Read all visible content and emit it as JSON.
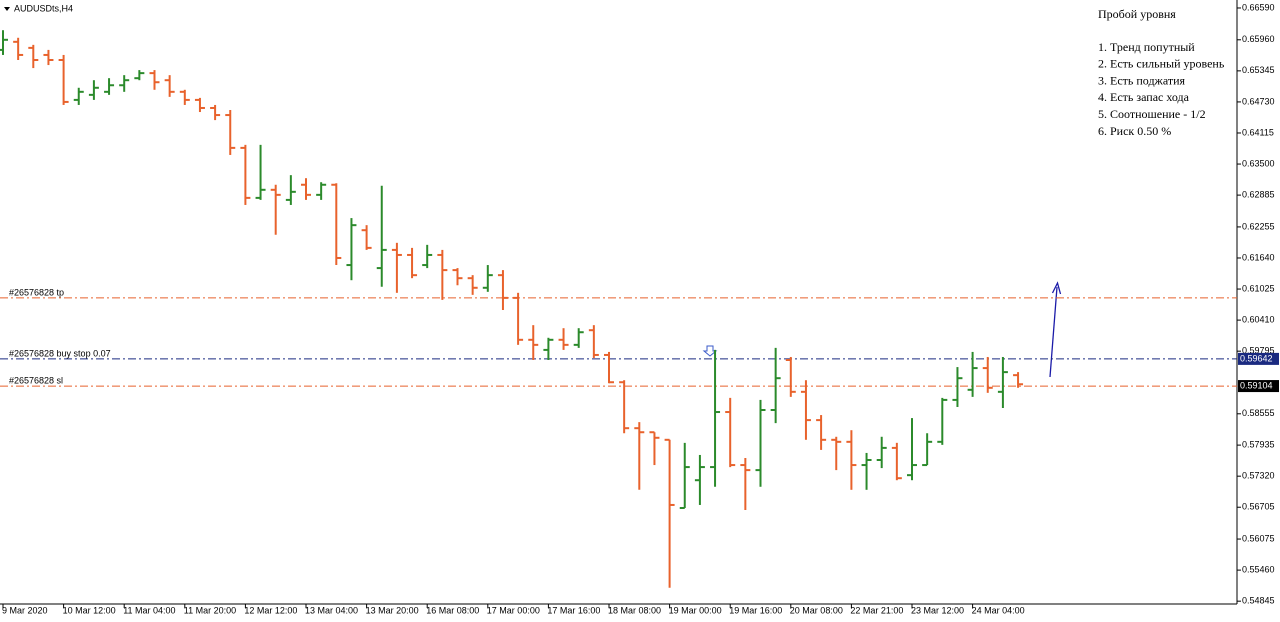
{
  "chart_data": {
    "type": "ohlc",
    "title": "AUDUSDts,H4",
    "categories": [
      "9 Mar 2020",
      null,
      null,
      null,
      "10 Mar 12:00",
      null,
      null,
      null,
      "11 Mar 04:00",
      null,
      null,
      null,
      "11 Mar 20:00",
      null,
      null,
      null,
      "12 Mar 12:00",
      null,
      null,
      null,
      "13 Mar 04:00",
      null,
      null,
      null,
      "13 Mar 20:00",
      null,
      null,
      null,
      "16 Mar 08:00",
      null,
      null,
      null,
      "17 Mar 00:00",
      null,
      null,
      null,
      "17 Mar 16:00",
      null,
      null,
      null,
      "18 Mar 08:00",
      null,
      null,
      null,
      "19 Mar 00:00",
      null,
      null,
      null,
      "19 Mar 16:00",
      null,
      null,
      null,
      "20 Mar 08:00",
      null,
      null,
      null,
      "22 Mar 21:00",
      null,
      null,
      null,
      "23 Mar 12:00",
      null,
      null,
      null,
      "24 Mar 04:00",
      null,
      null,
      null
    ],
    "open": [
      0.6576,
      0.6592,
      0.658,
      0.6566,
      0.6556,
      0.6477,
      0.6487,
      0.6493,
      0.6506,
      0.652,
      0.653,
      0.6516,
      0.6493,
      0.6477,
      0.6461,
      0.6447,
      0.6382,
      0.6283,
      0.6299,
      0.6279,
      0.6309,
      0.6289,
      0.6309,
      0.615,
      0.6219,
      0.6144,
      0.618,
      0.617,
      0.615,
      0.617,
      0.614,
      0.6124,
      0.6105,
      0.613,
      0.6085,
      0.6002,
      0.5982,
      0.6002,
      0.5992,
      0.6021,
      0.5972,
      0.5918,
      0.5827,
      0.5819,
      0.5804,
      0.5669,
      0.5724,
      0.575,
      0.5859,
      0.5754,
      0.5744,
      0.5863,
      0.5962,
      0.5899,
      0.5843,
      0.5804,
      0.58,
      0.5754,
      0.5764,
      0.5788,
      0.5734,
      0.5754,
      0.58,
      0.5883,
      0.5903,
      0.5946,
      0.5899,
      0.5932
    ],
    "high": [
      0.6615,
      0.66,
      0.6586,
      0.6576,
      0.6566,
      0.6501,
      0.6516,
      0.652,
      0.6526,
      0.6536,
      0.6536,
      0.6526,
      0.6497,
      0.6481,
      0.6467,
      0.6457,
      0.6388,
      0.6388,
      0.6309,
      0.6328,
      0.6322,
      0.6314,
      0.6312,
      0.6243,
      0.6229,
      0.6307,
      0.6194,
      0.6184,
      0.619,
      0.618,
      0.6144,
      0.613,
      0.615,
      0.614,
      0.6095,
      0.6031,
      0.6006,
      0.6025,
      0.6025,
      0.6031,
      0.5978,
      0.5922,
      0.5839,
      0.5819,
      0.5804,
      0.5798,
      0.5774,
      0.5982,
      0.5887,
      0.5768,
      0.5883,
      0.5986,
      0.5968,
      0.5922,
      0.5853,
      0.581,
      0.5823,
      0.5778,
      0.581,
      0.5798,
      0.5847,
      0.5817,
      0.5887,
      0.5948,
      0.5978,
      0.5968,
      0.5968,
      0.5938
    ],
    "low": [
      0.6566,
      0.6556,
      0.654,
      0.6546,
      0.6467,
      0.6467,
      0.6477,
      0.6487,
      0.6493,
      0.6516,
      0.6497,
      0.6483,
      0.6467,
      0.6453,
      0.6437,
      0.6368,
      0.6269,
      0.6279,
      0.621,
      0.6269,
      0.6279,
      0.6279,
      0.615,
      0.612,
      0.618,
      0.6107,
      0.6095,
      0.6124,
      0.6144,
      0.6081,
      0.611,
      0.6091,
      0.6097,
      0.6061,
      0.5992,
      0.5962,
      0.5962,
      0.5982,
      0.5986,
      0.5966,
      0.5916,
      0.5817,
      0.5705,
      0.5754,
      0.5511,
      0.5669,
      0.5675,
      0.5711,
      0.575,
      0.5665,
      0.5711,
      0.5837,
      0.5889,
      0.5804,
      0.5784,
      0.5744,
      0.5705,
      0.5705,
      0.5748,
      0.5724,
      0.5724,
      0.5754,
      0.5794,
      0.5869,
      0.5889,
      0.5897,
      0.5867,
      0.5907
    ],
    "close": [
      0.6596,
      0.6566,
      0.6556,
      0.6556,
      0.6473,
      0.6493,
      0.6501,
      0.6506,
      0.6516,
      0.653,
      0.6512,
      0.6493,
      0.6477,
      0.6461,
      0.6447,
      0.6382,
      0.6283,
      0.6299,
      0.6289,
      0.6295,
      0.6289,
      0.6309,
      0.6164,
      0.6229,
      0.6184,
      0.618,
      0.617,
      0.613,
      0.617,
      0.614,
      0.6124,
      0.6105,
      0.613,
      0.6085,
      0.6002,
      0.5992,
      0.6002,
      0.5992,
      0.6017,
      0.5972,
      0.5918,
      0.5827,
      0.5819,
      0.5808,
      0.5675,
      0.575,
      0.575,
      0.5859,
      0.5754,
      0.5744,
      0.5863,
      0.5926,
      0.5899,
      0.5843,
      0.5804,
      0.58,
      0.5754,
      0.5764,
      0.5788,
      0.5728,
      0.5754,
      0.58,
      0.5883,
      0.5926,
      0.5946,
      0.5907,
      0.5938,
      0.5914
    ],
    "up_color": "#2b8a2b",
    "down_color": "#e8622c",
    "ylim": [
      0.54789,
      0.66748
    ],
    "yticks": [
      {
        "value": 0.6659,
        "label": "0.66590"
      },
      {
        "value": 0.6596,
        "label": "0.65960"
      },
      {
        "value": 0.65345,
        "label": "0.65345"
      },
      {
        "value": 0.6473,
        "label": "0.64730"
      },
      {
        "value": 0.64115,
        "label": "0.64115"
      },
      {
        "value": 0.635,
        "label": "0.63500"
      },
      {
        "value": 0.62885,
        "label": "0.62885"
      },
      {
        "value": 0.62255,
        "label": "0.62255"
      },
      {
        "value": 0.6164,
        "label": "0.61640"
      },
      {
        "value": 0.61025,
        "label": "0.61025"
      },
      {
        "value": 0.6041,
        "label": "0.60410"
      },
      {
        "value": 0.59795,
        "label": "0.59795"
      },
      {
        "value": 0.58555,
        "label": "0.58555"
      },
      {
        "value": 0.57935,
        "label": "0.57935"
      },
      {
        "value": 0.5732,
        "label": "0.57320"
      },
      {
        "value": 0.56705,
        "label": "0.56705"
      },
      {
        "value": 0.56075,
        "label": "0.56075"
      },
      {
        "value": 0.5546,
        "label": "0.55460"
      },
      {
        "value": 0.54845,
        "label": "0.54845"
      }
    ],
    "levels": [
      {
        "name": "#26576828 tp",
        "value": 0.6085,
        "color": "#e8622c"
      },
      {
        "name": "#26576828 buy stop 0.07",
        "value": 0.59642,
        "label": "0.59642",
        "color": "#1a2a80"
      },
      {
        "name": "#26576828 sl",
        "value": 0.59104,
        "label": "0.59104",
        "color": "#e8622c"
      }
    ],
    "annotation": {
      "title": "Пробой уровня",
      "items": [
        "1. Тренд попутный",
        "2. Есть сильный уровень",
        "3. Есть поджатия",
        "4. Есть запас хода",
        "5. Соотношение - 1/2",
        "6. Риск 0.50 %"
      ]
    }
  }
}
